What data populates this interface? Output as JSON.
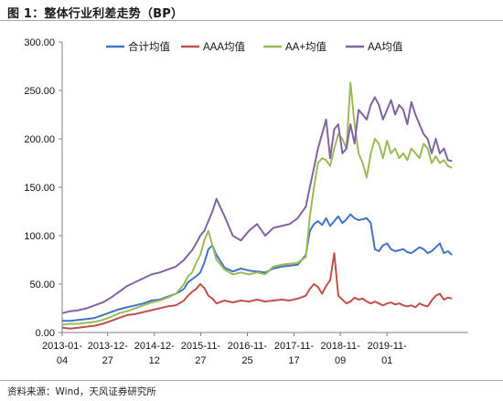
{
  "header": {
    "title": "图 1：整体行业利差走势（BP）"
  },
  "footer": {
    "source": "资料来源：Wind，天风证券研究所"
  },
  "chart_data": {
    "type": "line",
    "title": "图 1：整体行业利差走势（BP）",
    "xlabel": "",
    "ylabel": "",
    "ylim": [
      0,
      300
    ],
    "yticks": [
      "0.00",
      "50.00",
      "100.00",
      "150.00",
      "200.00",
      "250.00",
      "300.00"
    ],
    "xlim": [
      0,
      100
    ],
    "xticks": [
      {
        "top": "2013-01-",
        "bottom": "04",
        "x": 0
      },
      {
        "top": "2013-12-",
        "bottom": "27",
        "x": 11.2
      },
      {
        "top": "2014-12-",
        "bottom": "12",
        "x": 22.7
      },
      {
        "top": "2015-11-",
        "bottom": "27",
        "x": 34.1
      },
      {
        "top": "2016-11-",
        "bottom": "25",
        "x": 45.6
      },
      {
        "top": "2017-11-",
        "bottom": "17",
        "x": 57.1
      },
      {
        "top": "2018-11-",
        "bottom": "09",
        "x": 68.5
      },
      {
        "top": "2019-11-",
        "bottom": "01",
        "x": 80.0
      }
    ],
    "grid": false,
    "legend": "top-center",
    "series": [
      {
        "name": "合计均值",
        "color": "#4472C4",
        "x": [
          0,
          2,
          4,
          6,
          8,
          10,
          12,
          14,
          16,
          18,
          20,
          22,
          24,
          26,
          28,
          30,
          31,
          32,
          33,
          34,
          35,
          36,
          37,
          38,
          40,
          42,
          44,
          46,
          48,
          50,
          52,
          54,
          56,
          58,
          60,
          61,
          62,
          63,
          64,
          65,
          66,
          67,
          68,
          69,
          70,
          71,
          72,
          73,
          74,
          75,
          76,
          77,
          78,
          79,
          80,
          81,
          82,
          83,
          84,
          85,
          86,
          87,
          88,
          89,
          90,
          91,
          92,
          93,
          94,
          95,
          96
        ],
        "y": [
          12,
          12,
          13,
          14,
          15,
          18,
          21,
          24,
          26,
          28,
          30,
          33,
          34,
          37,
          40,
          45,
          52,
          55,
          58,
          62,
          72,
          86,
          90,
          80,
          67,
          63,
          66,
          64,
          63,
          62,
          66,
          68,
          69,
          70,
          80,
          105,
          112,
          115,
          111,
          118,
          110,
          115,
          120,
          113,
          117,
          122,
          118,
          116,
          117,
          118,
          113,
          86,
          84,
          90,
          92,
          86,
          84,
          85,
          86,
          83,
          82,
          85,
          88,
          86,
          82,
          84,
          88,
          92,
          82,
          84,
          80
        ]
      },
      {
        "name": "AAA均值",
        "color": "#C0504D",
        "x": [
          0,
          2,
          4,
          6,
          8,
          10,
          12,
          14,
          16,
          18,
          20,
          22,
          24,
          26,
          28,
          30,
          31,
          32,
          33,
          34,
          35,
          36,
          37,
          38,
          40,
          42,
          44,
          46,
          48,
          50,
          52,
          54,
          56,
          58,
          60,
          61,
          62,
          63,
          64,
          65,
          66,
          67,
          68,
          69,
          70,
          71,
          72,
          73,
          74,
          75,
          76,
          77,
          78,
          79,
          80,
          81,
          82,
          83,
          84,
          85,
          86,
          87,
          88,
          89,
          90,
          91,
          92,
          93,
          94,
          95,
          96
        ],
        "y": [
          5,
          4,
          5,
          6,
          7,
          9,
          12,
          15,
          18,
          19,
          21,
          23,
          25,
          27,
          28,
          33,
          38,
          42,
          45,
          50,
          46,
          38,
          35,
          30,
          33,
          31,
          33,
          32,
          34,
          32,
          33,
          34,
          33,
          35,
          38,
          45,
          50,
          47,
          40,
          48,
          54,
          82,
          38,
          34,
          30,
          32,
          36,
          34,
          35,
          32,
          30,
          32,
          30,
          28,
          30,
          31,
          29,
          30,
          28,
          27,
          28,
          26,
          30,
          28,
          27,
          33,
          38,
          40,
          34,
          36,
          35
        ]
      },
      {
        "name": "AA+均值",
        "color": "#9BBB59",
        "x": [
          0,
          2,
          4,
          6,
          8,
          10,
          12,
          14,
          16,
          18,
          20,
          22,
          24,
          26,
          28,
          30,
          31,
          32,
          33,
          34,
          35,
          36,
          37,
          38,
          40,
          42,
          44,
          46,
          48,
          50,
          52,
          54,
          56,
          58,
          60,
          61,
          62,
          63,
          64,
          65,
          66,
          67,
          68,
          69,
          70,
          71,
          72,
          73,
          74,
          75,
          76,
          77,
          78,
          79,
          80,
          81,
          82,
          83,
          84,
          85,
          86,
          87,
          88,
          89,
          90,
          91,
          92,
          93,
          94,
          95,
          96
        ],
        "y": [
          8,
          9,
          9,
          10,
          11,
          13,
          16,
          20,
          22,
          25,
          28,
          31,
          33,
          36,
          40,
          50,
          58,
          62,
          72,
          80,
          95,
          105,
          90,
          75,
          65,
          60,
          62,
          60,
          62,
          60,
          68,
          70,
          71,
          72,
          78,
          120,
          150,
          175,
          180,
          178,
          172,
          190,
          205,
          200,
          190,
          258,
          215,
          185,
          175,
          160,
          185,
          200,
          195,
          180,
          198,
          185,
          190,
          180,
          185,
          178,
          190,
          185,
          180,
          195,
          190,
          175,
          182,
          175,
          178,
          172,
          170
        ]
      },
      {
        "name": "AA均值",
        "color": "#8064A2",
        "x": [
          0,
          2,
          4,
          6,
          8,
          10,
          12,
          14,
          16,
          18,
          20,
          22,
          24,
          26,
          28,
          30,
          31,
          32,
          33,
          34,
          35,
          36,
          37,
          38,
          40,
          42,
          44,
          46,
          48,
          50,
          52,
          54,
          56,
          58,
          60,
          61,
          62,
          63,
          64,
          65,
          66,
          67,
          68,
          69,
          70,
          71,
          72,
          73,
          74,
          75,
          76,
          77,
          78,
          79,
          80,
          81,
          82,
          83,
          84,
          85,
          86,
          87,
          88,
          89,
          90,
          91,
          92,
          93,
          94,
          95,
          96
        ],
        "y": [
          20,
          22,
          23,
          25,
          28,
          31,
          36,
          42,
          48,
          52,
          56,
          60,
          62,
          65,
          68,
          75,
          80,
          85,
          92,
          100,
          105,
          115,
          125,
          138,
          120,
          100,
          95,
          105,
          112,
          100,
          108,
          110,
          112,
          118,
          130,
          150,
          170,
          190,
          205,
          220,
          180,
          210,
          215,
          185,
          190,
          215,
          195,
          230,
          225,
          220,
          235,
          243,
          235,
          220,
          230,
          240,
          225,
          235,
          230,
          215,
          238,
          225,
          215,
          205,
          200,
          185,
          200,
          185,
          190,
          178,
          177
        ]
      }
    ]
  }
}
